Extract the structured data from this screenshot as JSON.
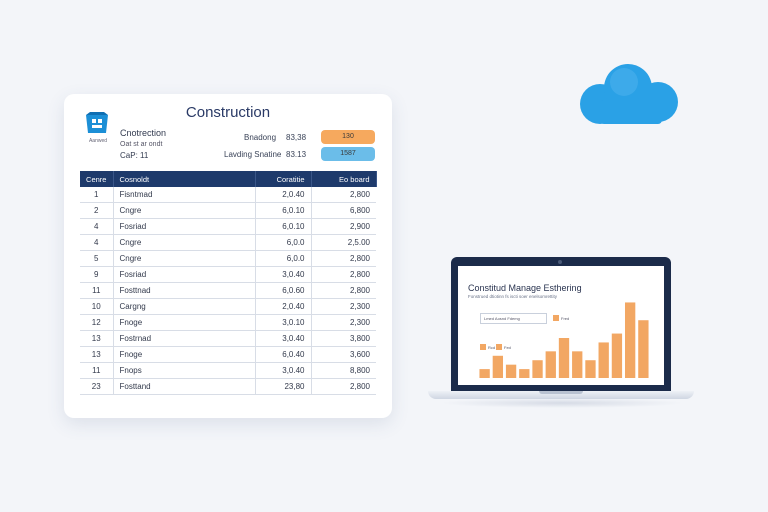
{
  "document": {
    "title": "Construction",
    "logo_caption": "Aanwed",
    "meta_line1": "Cnotrection",
    "meta_line2": "Oat st ar ondt",
    "meta_line3": "CaP: 11",
    "field1_label": "Bnadong",
    "field1_value": "83,38",
    "field1_badge": "130",
    "field2_label": "Lavding Snatine",
    "field2_value": "83.13",
    "field2_badge": "1587",
    "accent_orange": "#f6a95e",
    "accent_blue": "#6bbde9",
    "header_color": "#1e3a6b",
    "table": {
      "headers": [
        "Cenre",
        "Cosnoldt",
        "Coratitie",
        "Eo board"
      ],
      "rows": [
        [
          "1",
          "Fisntmad",
          "2,0.40",
          "2,800"
        ],
        [
          "2",
          "Cngre",
          "6,0.10",
          "6,800"
        ],
        [
          "4",
          "Fosriad",
          "6,0.10",
          "2,900"
        ],
        [
          "4",
          "Cngre",
          "6,0.0",
          "2,5.00"
        ],
        [
          "5",
          "Cngre",
          "6,0.0",
          "2,800"
        ],
        [
          "9",
          "Fosriad",
          "3,0.40",
          "2,800"
        ],
        [
          "11",
          "Fosttnad",
          "6,0.60",
          "2,800"
        ],
        [
          "10",
          "Cargng",
          "2,0.40",
          "2,300"
        ],
        [
          "12",
          "Fnoge",
          "3,0.10",
          "2,300"
        ],
        [
          "13",
          "Fostrnad",
          "3,0.40",
          "3,800"
        ],
        [
          "13",
          "Fnoge",
          "6,0.40",
          "3,600"
        ],
        [
          "11",
          "Fnops",
          "3,0.40",
          "8,800"
        ],
        [
          "23",
          "Fosttand",
          "23,80",
          "2,800"
        ]
      ]
    }
  },
  "cloud_icon": "cloud-icon",
  "cloud_color": "#2aa1e6",
  "laptop": {
    "screen_title": "Constitud Manage Esthering",
    "screen_subtitle": "Fonstrued dtiotinn fs iscti soer enelsomrettity",
    "field_text": "Lmed Aosnd Fdemg",
    "legend1": "Fred",
    "legend2": "Rcd",
    "legend3": "Fed",
    "bar_color": "#f2a763",
    "chart_data": {
      "type": "bar",
      "values": [
        2,
        5,
        3,
        2,
        4,
        6,
        9,
        6,
        4,
        8,
        10,
        17,
        13
      ],
      "ylim": [
        0,
        18
      ]
    }
  }
}
